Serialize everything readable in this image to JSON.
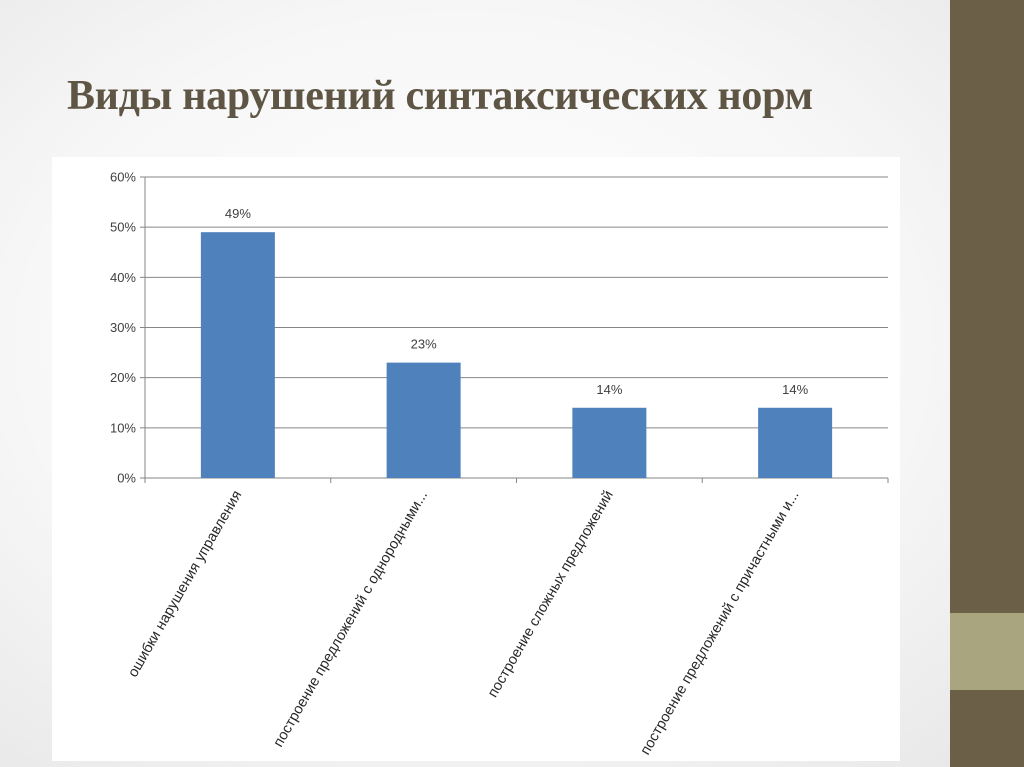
{
  "slide": {
    "title": "Виды нарушений синтаксических норм",
    "colors": {
      "sidebar": "#6b5f47",
      "sidebar_accent": "#a9a57f",
      "title": "#5e5544",
      "bar": "#4f81bd"
    }
  },
  "chart_data": {
    "type": "bar",
    "title": "",
    "xlabel": "",
    "ylabel": "",
    "categories": [
      "ошибки нарушения управления",
      "построение предложений с однородными...",
      "построение сложных предложений",
      "построение предложений с причастными и..."
    ],
    "values": [
      49,
      23,
      14,
      14
    ],
    "data_labels": [
      "49%",
      "23%",
      "14%",
      "14%"
    ],
    "ylim": [
      0,
      60
    ],
    "yticks": [
      0,
      10,
      20,
      30,
      40,
      50,
      60
    ],
    "ytick_labels": [
      "0%",
      "10%",
      "20%",
      "30%",
      "40%",
      "50%",
      "60%"
    ],
    "grid": true,
    "legend": "none",
    "bar_color": "#4f81bd"
  }
}
